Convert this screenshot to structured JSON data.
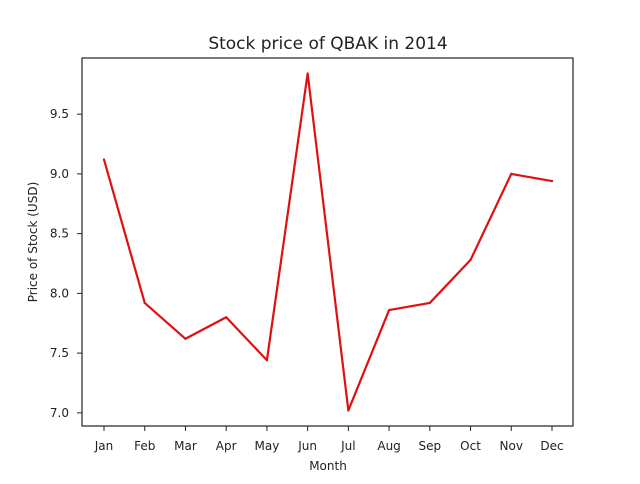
{
  "chart_data": {
    "type": "line",
    "title": "Stock price of QBAK in 2014",
    "xlabel": "Month",
    "ylabel": "Price of Stock (USD)",
    "categories": [
      "Jan",
      "Feb",
      "Mar",
      "Apr",
      "May",
      "Jun",
      "Jul",
      "Aug",
      "Sep",
      "Oct",
      "Nov",
      "Dec"
    ],
    "series": [
      {
        "values": [
          9.12,
          7.92,
          7.62,
          7.8,
          7.44,
          9.84,
          7.02,
          7.86,
          7.92,
          8.28,
          9.0,
          8.94
        ]
      }
    ],
    "yticks": [
      7.0,
      7.5,
      8.0,
      8.5,
      9.0,
      9.5
    ],
    "ytick_labels": [
      "7.0",
      "7.5",
      "8.0",
      "8.5",
      "9.0",
      "9.5"
    ],
    "ylim": [
      6.89,
      9.97
    ],
    "grid": false,
    "line_color": "#dd1111"
  }
}
